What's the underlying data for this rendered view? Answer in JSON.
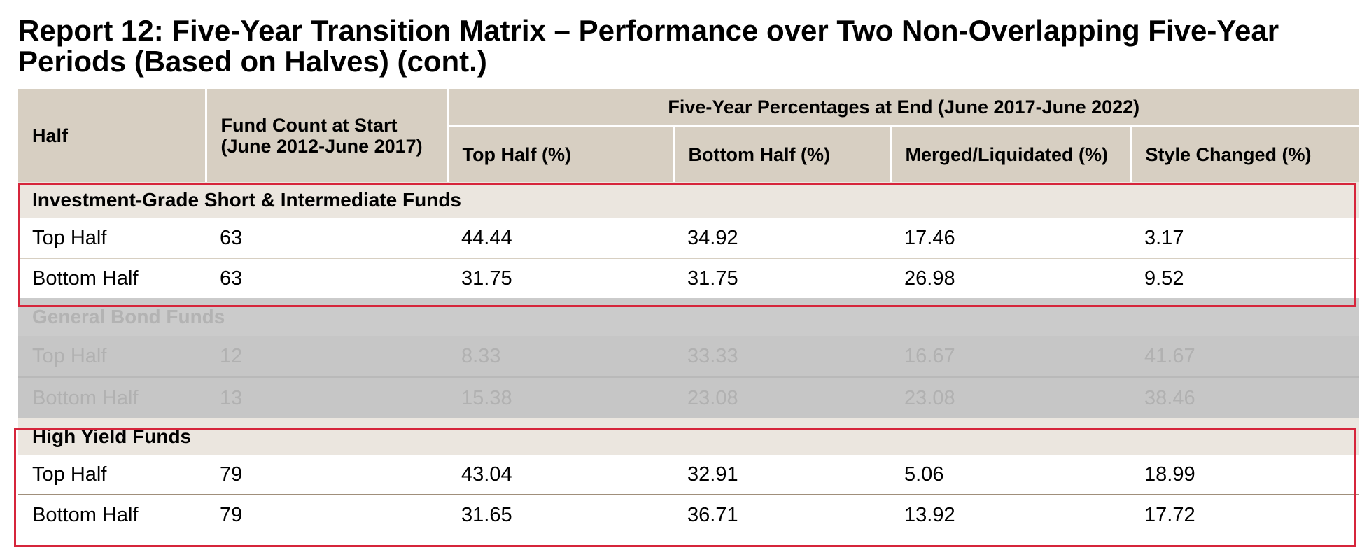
{
  "report": {
    "title": "Report 12: Five-Year Transition Matrix – Performance over Two Non-Overlapping Five-Year Periods (Based on Halves) (cont.)"
  },
  "table": {
    "header": {
      "half": "Half",
      "fund_count": "Fund Count at Start (June 2012-June 2017)",
      "span": "Five-Year Percentages at End (June 2017-June 2022)",
      "top_half": "Top Half (%)",
      "bottom_half": "Bottom Half (%)",
      "merged": "Merged/Liquidated (%)",
      "style_changed": "Style Changed (%)"
    },
    "groups": [
      {
        "name": "Investment-Grade Short & Intermediate Funds",
        "highlighted": true,
        "rows": [
          {
            "half": "Top Half",
            "count": "63",
            "top": "44.44",
            "bottom": "34.92",
            "merged": "17.46",
            "style": "3.17"
          },
          {
            "half": "Bottom Half",
            "count": "63",
            "top": "31.75",
            "bottom": "31.75",
            "merged": "26.98",
            "style": "9.52"
          }
        ]
      },
      {
        "name": "General Bond Funds",
        "highlighted": false,
        "faded": true,
        "rows": [
          {
            "half": "Top Half",
            "count": "12",
            "top": "8.33",
            "bottom": "33.33",
            "merged": "16.67",
            "style": "41.67"
          },
          {
            "half": "Bottom Half",
            "count": "13",
            "top": "15.38",
            "bottom": "23.08",
            "merged": "23.08",
            "style": "38.46"
          }
        ]
      },
      {
        "name": "High Yield Funds",
        "highlighted": true,
        "rows": [
          {
            "half": "Top Half",
            "count": "79",
            "top": "43.04",
            "bottom": "32.91",
            "merged": "5.06",
            "style": "18.99"
          },
          {
            "half": "Bottom Half",
            "count": "79",
            "top": "31.65",
            "bottom": "36.71",
            "merged": "13.92",
            "style": "17.72"
          }
        ]
      }
    ]
  },
  "colors": {
    "header_bg": "#d7cfc2",
    "group_bg": "#ebe6df",
    "faded_bg": "#c6c6c6",
    "highlight_border": "#d6253b"
  }
}
